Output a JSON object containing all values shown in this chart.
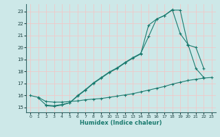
{
  "bg_color": "#cde8e8",
  "grid_color": "#f0c8c8",
  "line_color": "#1a7a6e",
  "xlabel": "Humidex (Indice chaleur)",
  "xlim": [
    -0.5,
    23.5
  ],
  "ylim": [
    14.6,
    23.6
  ],
  "xticks": [
    0,
    1,
    2,
    3,
    4,
    5,
    6,
    7,
    8,
    9,
    10,
    11,
    12,
    13,
    14,
    15,
    16,
    17,
    18,
    19,
    20,
    21,
    22,
    23
  ],
  "yticks": [
    15,
    16,
    17,
    18,
    19,
    20,
    21,
    22,
    23
  ],
  "line1_x": [
    0,
    1,
    2,
    3,
    4,
    5,
    6,
    7,
    8,
    9,
    10,
    11,
    12,
    13,
    14,
    15,
    16,
    17,
    18,
    19,
    20,
    21,
    22,
    23
  ],
  "line1_y": [
    16.0,
    15.85,
    15.5,
    15.45,
    15.45,
    15.5,
    15.55,
    15.65,
    15.7,
    15.75,
    15.85,
    15.95,
    16.05,
    16.15,
    16.3,
    16.45,
    16.6,
    16.75,
    16.95,
    17.1,
    17.25,
    17.35,
    17.45,
    17.5
  ],
  "line2_x": [
    1,
    2,
    3,
    4,
    5,
    6,
    7,
    8,
    9,
    10,
    11,
    12,
    13,
    14,
    15,
    16,
    17,
    18,
    19,
    20,
    21,
    22
  ],
  "line2_y": [
    15.8,
    15.2,
    15.15,
    15.25,
    15.4,
    16.0,
    16.5,
    17.05,
    17.5,
    17.95,
    18.3,
    18.75,
    19.15,
    19.5,
    20.9,
    22.35,
    22.65,
    23.1,
    23.1,
    20.2,
    20.0,
    18.25
  ],
  "line3_x": [
    2,
    3,
    4,
    5,
    6,
    7,
    8,
    9,
    10,
    11,
    12,
    13,
    14,
    15,
    16,
    17,
    18,
    19,
    20,
    21,
    22
  ],
  "line3_y": [
    15.15,
    15.1,
    15.2,
    15.4,
    15.95,
    16.45,
    17.0,
    17.45,
    17.9,
    18.25,
    18.7,
    19.1,
    19.45,
    21.85,
    22.35,
    22.65,
    23.15,
    21.15,
    20.25,
    18.25,
    17.5
  ]
}
